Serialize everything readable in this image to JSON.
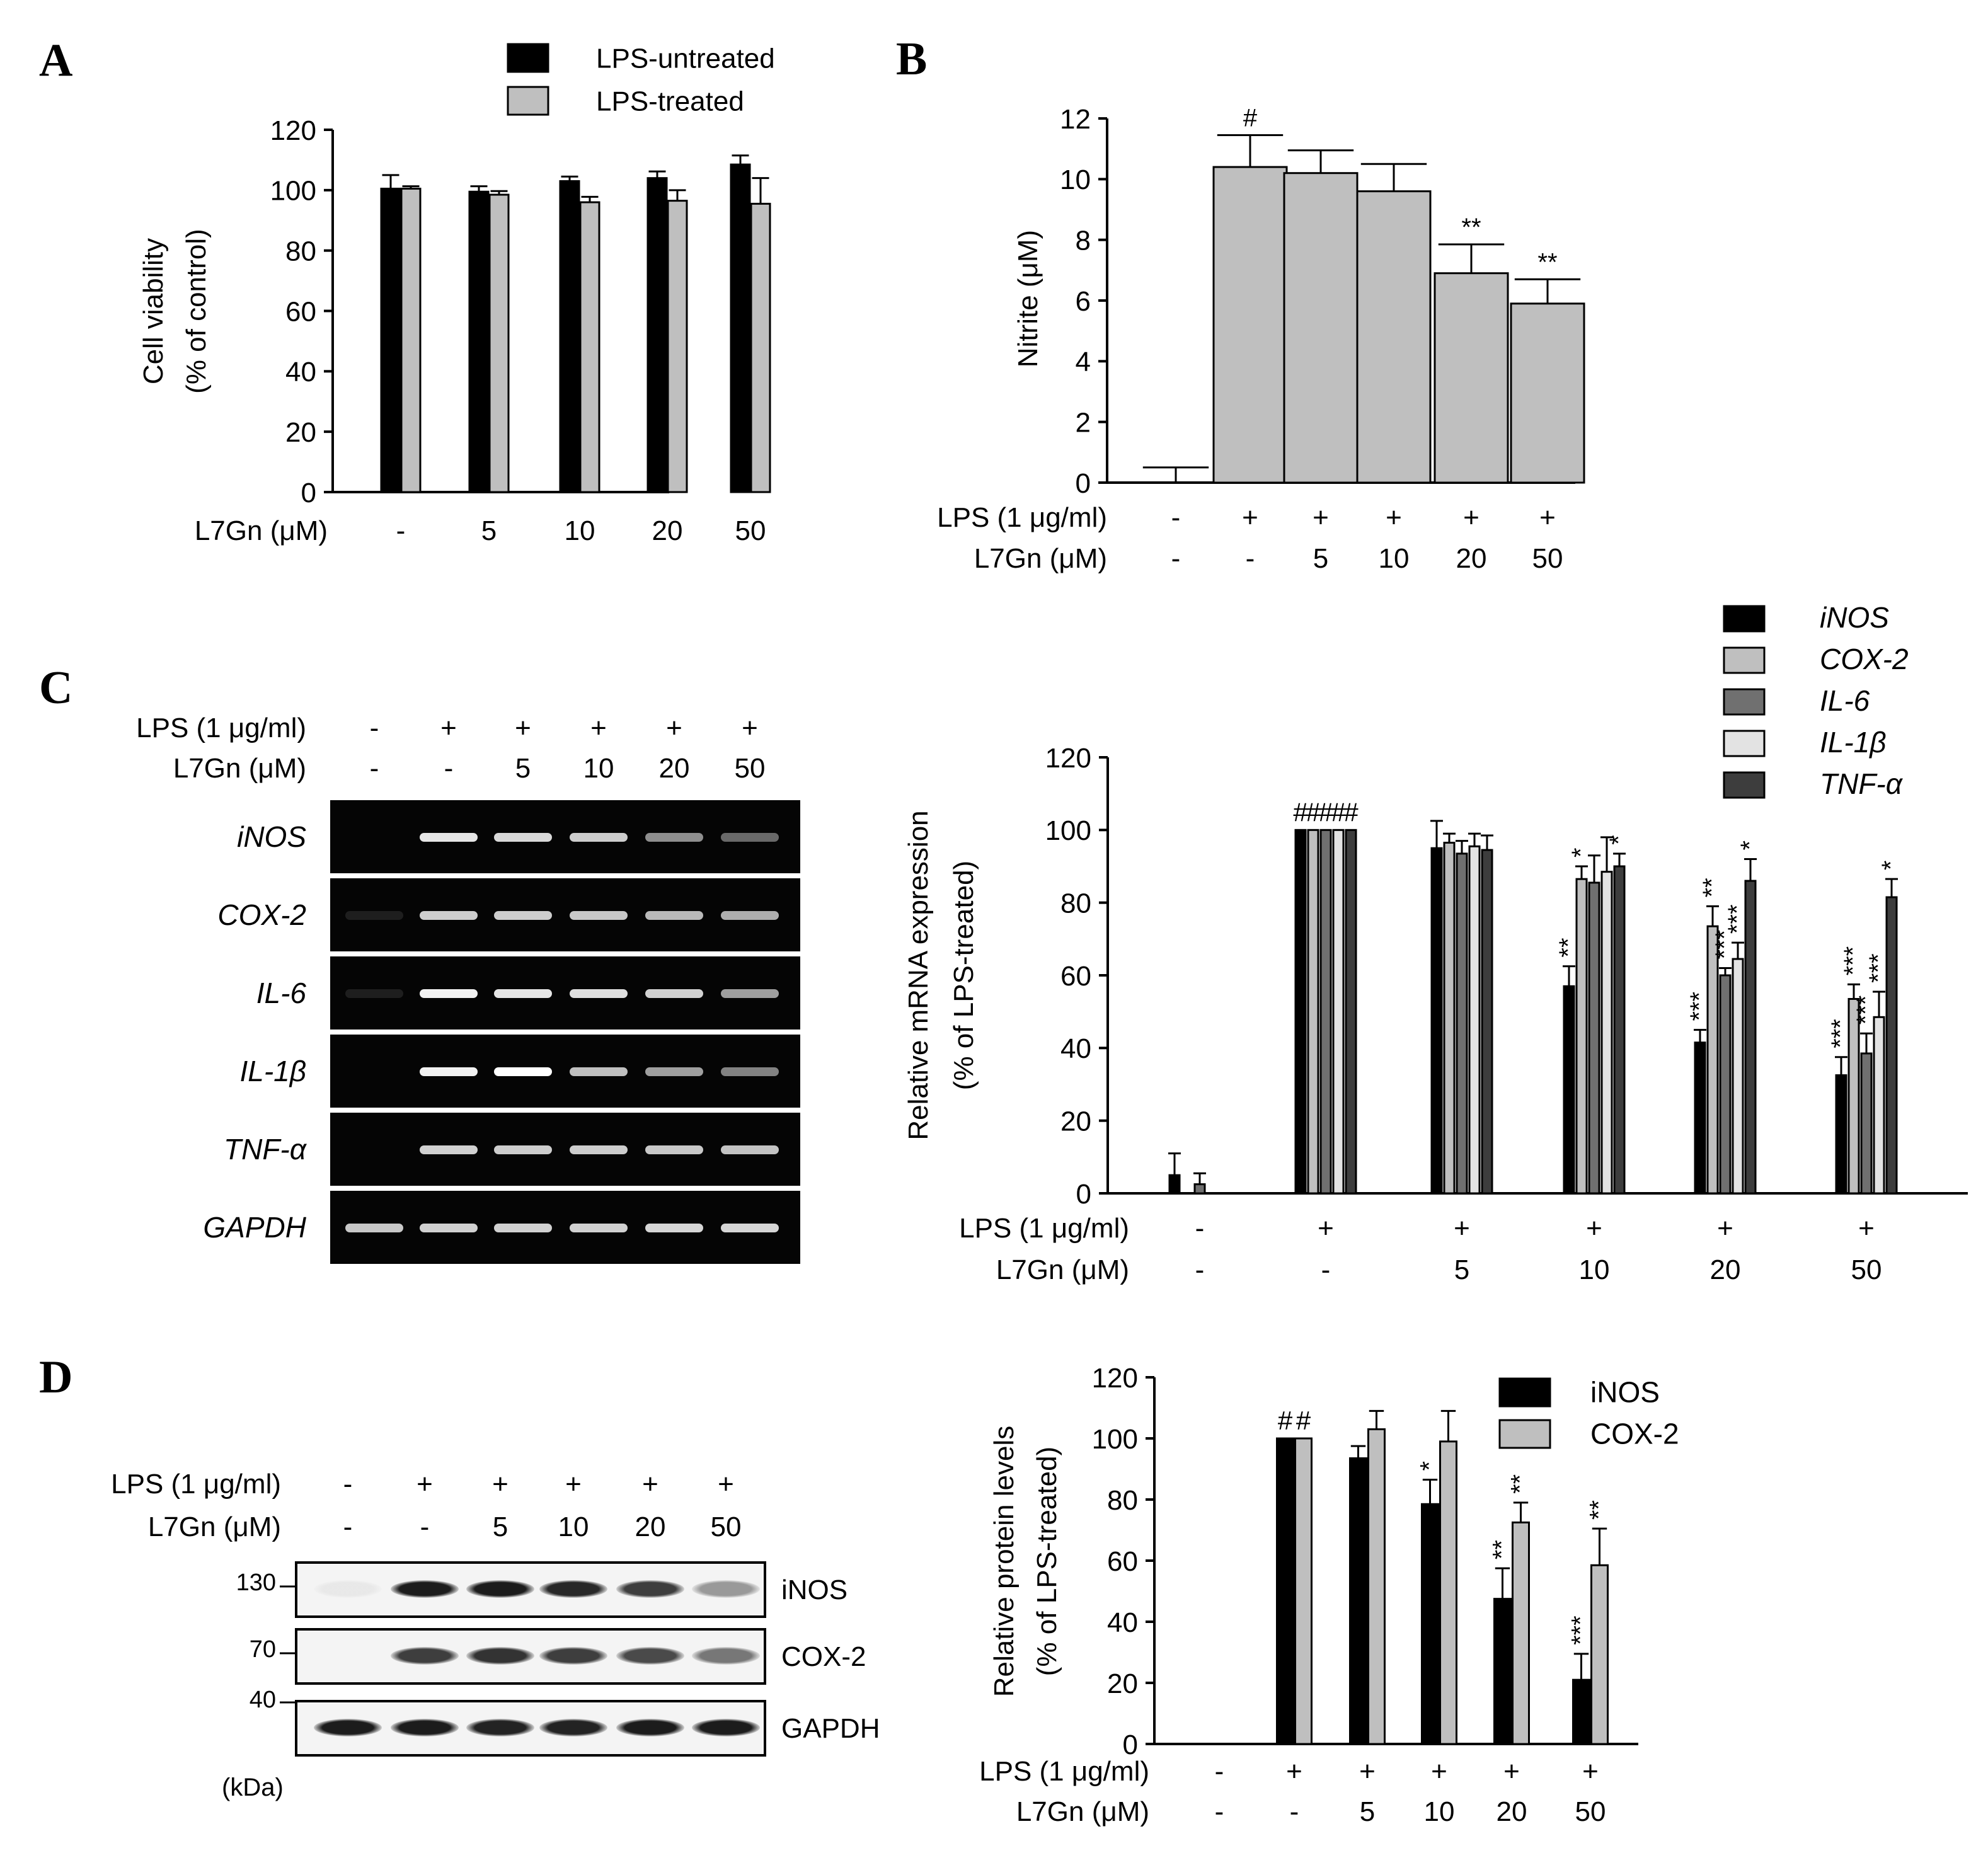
{
  "chart_data": [
    {
      "id": "A",
      "type": "bar",
      "panel_label": "A",
      "ylabel": [
        "Cell viability",
        "(% of control)"
      ],
      "ylim": [
        0,
        120
      ],
      "yticks": [
        0,
        20,
        40,
        60,
        80,
        100,
        120
      ],
      "legend_position": "top",
      "condition_rows": [
        {
          "label": "L7Gn (μM)",
          "values": [
            "-",
            "5",
            "10",
            "20",
            "50"
          ]
        }
      ],
      "groups": 5,
      "series": [
        {
          "name": "LPS-untreated",
          "color": "#000000",
          "values": [
            100.5,
            99.5,
            103,
            104,
            108.5
          ],
          "errors": [
            4.5,
            1.8,
            1.5,
            2.2,
            3.0
          ],
          "sig": [
            "",
            "",
            "",
            "",
            ""
          ]
        },
        {
          "name": "LPS-treated",
          "color": "#bfbfbf",
          "values": [
            100.5,
            98.5,
            96,
            96.5,
            95.5
          ],
          "errors": [
            0.8,
            1.2,
            1.8,
            3.5,
            8.5
          ],
          "sig": [
            "",
            "",
            "",
            "",
            ""
          ]
        }
      ]
    },
    {
      "id": "B",
      "type": "bar",
      "panel_label": "B",
      "ylabel": [
        "Nitrite (μM)"
      ],
      "ylim": [
        0,
        12
      ],
      "yticks": [
        0,
        2,
        4,
        6,
        8,
        10,
        12
      ],
      "condition_rows": [
        {
          "label": "LPS (1 μg/ml)",
          "values": [
            "-",
            "+",
            "+",
            "+",
            "+",
            "+"
          ]
        },
        {
          "label": "L7Gn (μM)",
          "values": [
            "-",
            "-",
            "5",
            "10",
            "20",
            "50"
          ]
        }
      ],
      "groups": 6,
      "series": [
        {
          "name": "",
          "color": "#bfbfbf",
          "values": [
            0,
            10.4,
            10.2,
            9.6,
            6.9,
            5.9
          ],
          "errors": [
            0.5,
            1.05,
            0.75,
            0.9,
            0.95,
            0.8
          ],
          "sig": [
            "",
            "#",
            "",
            "",
            "**",
            "**"
          ]
        }
      ]
    },
    {
      "id": "C",
      "type": "bar",
      "ylabel": [
        "Relative mRNA expression",
        "(% of LPS-treated)"
      ],
      "ylim": [
        0,
        120
      ],
      "yticks": [
        0,
        20,
        40,
        60,
        80,
        100,
        120
      ],
      "legend_position": "top-right",
      "condition_rows": [
        {
          "label": "LPS (1 μg/ml)",
          "values": [
            "-",
            "+",
            "+",
            "+",
            "+",
            "+"
          ]
        },
        {
          "label": "L7Gn (μM)",
          "values": [
            "-",
            "-",
            "5",
            "10",
            "20",
            "50"
          ]
        }
      ],
      "groups": 6,
      "series": [
        {
          "name": "iNOS",
          "color": "#000000",
          "values": [
            5,
            100,
            95,
            57,
            41.5,
            32.5
          ],
          "errors": [
            6,
            0,
            7.5,
            5.5,
            3.5,
            5
          ],
          "sig": [
            "",
            "#",
            "",
            "**",
            "***",
            "***"
          ]
        },
        {
          "name": "COX-2",
          "color": "#bfbfbf",
          "values": [
            0,
            100,
            96.5,
            86.5,
            73.5,
            53.5
          ],
          "errors": [
            0,
            0,
            2.5,
            3.5,
            5.5,
            4
          ],
          "sig": [
            "",
            "#",
            "",
            "*",
            "**",
            "***"
          ]
        },
        {
          "name": "IL-6",
          "color": "#707070",
          "values": [
            2.5,
            100,
            93.5,
            85.5,
            60,
            38.5
          ],
          "errors": [
            3,
            0,
            3.5,
            7.5,
            2,
            5.5
          ],
          "sig": [
            "",
            "#",
            "",
            "",
            "***",
            "***"
          ]
        },
        {
          "name": "IL-1β",
          "color": "#e3e3e3",
          "values": [
            0,
            100,
            95.5,
            88.5,
            64.5,
            48.5
          ],
          "errors": [
            0,
            0,
            3.5,
            9.5,
            4.5,
            7
          ],
          "sig": [
            "",
            "#",
            "",
            "",
            "***",
            "***"
          ]
        },
        {
          "name": "TNF-α",
          "color": "#3d3d3d",
          "values": [
            0,
            100,
            94.5,
            90,
            86,
            81.5
          ],
          "errors": [
            0,
            0,
            4,
            3.5,
            6,
            5
          ],
          "sig": [
            "",
            "#",
            "",
            "*",
            "*",
            "*"
          ]
        }
      ]
    },
    {
      "id": "D",
      "type": "bar",
      "ylabel": [
        "Relative protein levels",
        "(% of LPS-treated)"
      ],
      "ylim": [
        0,
        120
      ],
      "yticks": [
        0,
        20,
        40,
        60,
        80,
        100,
        120
      ],
      "legend_position": "top-right",
      "condition_rows": [
        {
          "label": "LPS (1 μg/ml)",
          "values": [
            "-",
            "+",
            "+",
            "+",
            "+",
            "+"
          ]
        },
        {
          "label": "L7Gn (μM)",
          "values": [
            "-",
            "-",
            "5",
            "10",
            "20",
            "50"
          ]
        }
      ],
      "groups": 6,
      "series": [
        {
          "name": "iNOS",
          "color": "#000000",
          "values": [
            0,
            100,
            93.5,
            78.5,
            47.5,
            21
          ],
          "errors": [
            0,
            0,
            4,
            8,
            10,
            8.5
          ],
          "sig": [
            "",
            "#",
            "",
            "*",
            "**",
            "***"
          ]
        },
        {
          "name": "COX-2",
          "color": "#bfbfbf",
          "values": [
            0,
            100,
            103,
            99,
            72.5,
            58.5
          ],
          "errors": [
            0,
            0,
            6,
            10,
            6.5,
            12
          ],
          "sig": [
            "",
            "#",
            "",
            "",
            "**",
            "**"
          ]
        }
      ]
    }
  ],
  "gels": {
    "C": {
      "panel_label": "C",
      "lps_label": "LPS (1 μg/ml)",
      "lps_values": [
        "-",
        "+",
        "+",
        "+",
        "+",
        "+"
      ],
      "l7gn_label": "L7Gn (μM)",
      "l7gn_values": [
        "-",
        "-",
        "5",
        "10",
        "20",
        "50"
      ],
      "rows": [
        {
          "label": "iNOS",
          "intensity": [
            0,
            0.9,
            0.85,
            0.8,
            0.55,
            0.4
          ]
        },
        {
          "label": "COX-2",
          "intensity": [
            0.1,
            0.8,
            0.8,
            0.78,
            0.72,
            0.68
          ]
        },
        {
          "label": "IL-6",
          "intensity": [
            0.1,
            0.95,
            0.9,
            0.88,
            0.82,
            0.62
          ]
        },
        {
          "label": "IL-1β",
          "intensity": [
            0,
            0.95,
            1.0,
            0.75,
            0.62,
            0.5
          ]
        },
        {
          "label": "TNF-α",
          "intensity": [
            0,
            0.82,
            0.8,
            0.8,
            0.78,
            0.76
          ]
        },
        {
          "label": "GAPDH",
          "intensity": [
            0.78,
            0.82,
            0.82,
            0.82,
            0.84,
            0.84
          ]
        }
      ]
    },
    "D": {
      "panel_label": "D",
      "lps_label": "LPS (1 μg/ml)",
      "lps_values": [
        "-",
        "+",
        "+",
        "+",
        "+",
        "+"
      ],
      "l7gn_label": "L7Gn (μM)",
      "l7gn_values": [
        "-",
        "-",
        "5",
        "10",
        "20",
        "50"
      ],
      "kda_unit": "(kDa)",
      "rows": [
        {
          "label": "iNOS",
          "kda": "130",
          "intensity": [
            0.05,
            0.95,
            0.95,
            0.9,
            0.8,
            0.4
          ]
        },
        {
          "label": "COX-2",
          "kda": "70",
          "intensity": [
            0,
            0.8,
            0.85,
            0.8,
            0.75,
            0.55
          ]
        },
        {
          "label": "GAPDH",
          "kda": "40",
          "intensity": [
            0.95,
            0.95,
            0.92,
            0.92,
            0.95,
            0.95
          ]
        }
      ]
    }
  }
}
